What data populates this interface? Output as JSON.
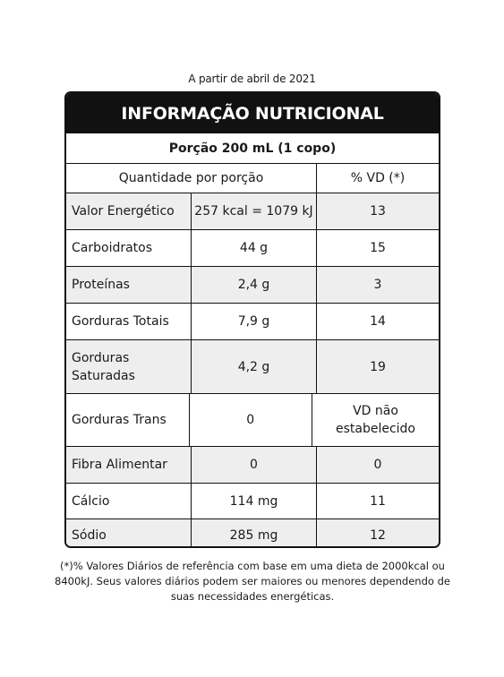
{
  "date_note": "A partir de abril de 2021",
  "header": {
    "title": "INFORMAÇÃO NUTRICIONAL"
  },
  "portion": "Porção 200 mL (1 copo)",
  "columns": {
    "quantity": "Quantidade por porção",
    "vd": "% VD (*)"
  },
  "rows": [
    {
      "name": "Valor Energético",
      "qty": "257 kcal = 1079 kJ",
      "vd": "13"
    },
    {
      "name": "Carboidratos",
      "qty": "44 g",
      "vd": "15"
    },
    {
      "name": "Proteínas",
      "qty": "2,4 g",
      "vd": "3"
    },
    {
      "name": "Gorduras Totais",
      "qty": "7,9 g",
      "vd": "14"
    },
    {
      "name": "Gorduras Saturadas",
      "qty": "4,2 g",
      "vd": "19"
    },
    {
      "name": "Gorduras Trans",
      "qty": "0",
      "vd": "VD não estabelecido"
    },
    {
      "name": "Fibra Alimentar",
      "qty": "0",
      "vd": "0"
    },
    {
      "name": "Cálcio",
      "qty": "114 mg",
      "vd": "11"
    },
    {
      "name": "Sódio",
      "qty": "285 mg",
      "vd": "12"
    }
  ],
  "footnote": "(*)% Valores Diários de referência com base em uma dieta de 2000kcal ou 8400kJ. Seus valores diários podem ser maiores ou menores dependendo de suas necessidades energéticas.",
  "colors": {
    "header_bg": "#111111",
    "shade": "#eeeeee"
  }
}
